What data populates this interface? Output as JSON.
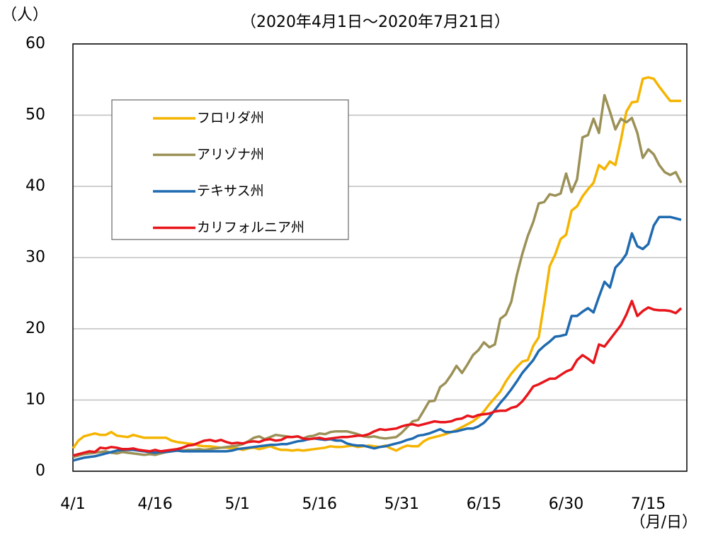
{
  "chart_data": {
    "type": "line",
    "title": "（2020年4月1日～2020年7月21日）",
    "y_axis_label": "（人）",
    "x_axis_label": "（月/日）",
    "categories": [
      "4/1",
      null,
      null,
      null,
      null,
      null,
      null,
      null,
      null,
      null,
      null,
      null,
      null,
      null,
      null,
      "4/16",
      null,
      null,
      null,
      null,
      null,
      null,
      null,
      null,
      null,
      null,
      null,
      null,
      null,
      null,
      "5/1",
      null,
      null,
      null,
      null,
      null,
      null,
      null,
      null,
      null,
      null,
      null,
      null,
      null,
      null,
      "5/16",
      null,
      null,
      null,
      null,
      null,
      null,
      null,
      null,
      null,
      null,
      null,
      null,
      null,
      null,
      "5/31",
      null,
      null,
      null,
      null,
      null,
      null,
      null,
      null,
      null,
      null,
      null,
      null,
      null,
      null,
      "6/15",
      null,
      null,
      null,
      null,
      null,
      null,
      null,
      null,
      null,
      null,
      null,
      null,
      null,
      null,
      "6/30",
      null,
      null,
      null,
      null,
      null,
      null,
      null,
      null,
      null,
      null,
      null,
      null,
      null,
      null,
      "7/15",
      null,
      null,
      null,
      null,
      null,
      null
    ],
    "series": [
      {
        "name": "フロリダ州",
        "color": "#f5b400",
        "values": [
          3.2,
          4.3,
          4.9,
          5.1,
          5.3,
          5.1,
          5.1,
          5.5,
          5.0,
          4.9,
          4.8,
          5.1,
          4.9,
          4.7,
          4.7,
          4.7,
          4.7,
          4.7,
          4.3,
          4.1,
          4.0,
          3.9,
          3.8,
          3.6,
          3.5,
          3.5,
          3.4,
          3.3,
          3.3,
          3.2,
          3.2,
          3.0,
          3.2,
          3.3,
          3.1,
          3.3,
          3.5,
          3.2,
          3.0,
          3.0,
          2.9,
          3.0,
          2.9,
          3.0,
          3.1,
          3.2,
          3.3,
          3.5,
          3.4,
          3.4,
          3.5,
          3.6,
          3.4,
          3.5,
          3.6,
          3.5,
          3.4,
          3.6,
          3.2,
          2.9,
          3.3,
          3.6,
          3.5,
          3.5,
          4.2,
          4.6,
          4.8,
          5.0,
          5.2,
          5.5,
          5.8,
          6.2,
          6.6,
          7.0,
          7.6,
          8.4,
          9.4,
          10.3,
          11.2,
          12.6,
          13.7,
          14.6,
          15.4,
          15.6,
          17.6,
          18.8,
          23.6,
          28.8,
          30.4,
          32.6,
          33.2,
          36.6,
          37.2,
          38.6,
          39.6,
          40.5,
          43.0,
          42.4,
          43.5,
          43.0,
          46.5,
          50.5,
          51.8,
          51.9,
          55.1,
          55.3,
          55.1,
          54.0,
          53.0,
          52.0,
          52.0,
          52.0
        ]
      },
      {
        "name": "アリゾナ州",
        "color": "#9b9157",
        "values": [
          2.0,
          2.2,
          2.4,
          2.5,
          2.6,
          2.7,
          2.8,
          2.6,
          2.5,
          2.7,
          2.6,
          2.5,
          2.4,
          2.3,
          2.4,
          2.3,
          2.5,
          2.7,
          2.8,
          2.9,
          2.9,
          3.0,
          3.0,
          3.1,
          3.0,
          3.1,
          3.2,
          3.3,
          3.4,
          3.5,
          3.6,
          3.8,
          4.2,
          4.7,
          4.9,
          4.5,
          4.8,
          5.1,
          5.0,
          4.9,
          4.8,
          4.9,
          4.6,
          4.9,
          5.0,
          5.3,
          5.2,
          5.5,
          5.6,
          5.6,
          5.6,
          5.4,
          5.2,
          4.9,
          4.8,
          4.9,
          4.7,
          4.6,
          4.7,
          4.8,
          5.4,
          6.2,
          7.0,
          7.2,
          8.5,
          9.8,
          9.9,
          11.8,
          12.4,
          13.5,
          14.8,
          13.8,
          15.0,
          16.3,
          17.0,
          18.1,
          17.4,
          17.8,
          21.4,
          22.0,
          23.8,
          27.5,
          30.5,
          33.0,
          35.0,
          37.6,
          37.8,
          38.9,
          38.7,
          39.0,
          41.8,
          39.2,
          41.0,
          46.9,
          47.2,
          49.5,
          47.5,
          52.8,
          50.5,
          48.0,
          49.5,
          49.0,
          49.6,
          47.5,
          44.0,
          45.2,
          44.5,
          43.0,
          42.0,
          41.6,
          42.0,
          40.5
        ]
      },
      {
        "name": "テキサス州",
        "color": "#1f6ab0",
        "values": [
          1.5,
          1.7,
          1.9,
          2.0,
          2.1,
          2.3,
          2.5,
          2.7,
          2.9,
          3.0,
          3.0,
          3.0,
          2.9,
          2.8,
          2.7,
          2.6,
          2.7,
          2.7,
          2.8,
          2.9,
          2.8,
          2.8,
          2.8,
          2.8,
          2.8,
          2.8,
          2.8,
          2.8,
          2.8,
          2.9,
          3.1,
          3.2,
          3.3,
          3.4,
          3.5,
          3.6,
          3.7,
          3.7,
          3.8,
          3.8,
          4.0,
          4.2,
          4.3,
          4.5,
          4.6,
          4.5,
          4.4,
          4.5,
          4.3,
          4.3,
          3.9,
          3.7,
          3.6,
          3.6,
          3.4,
          3.2,
          3.4,
          3.5,
          3.7,
          3.9,
          4.1,
          4.4,
          4.6,
          5.0,
          5.1,
          5.3,
          5.6,
          5.9,
          5.5,
          5.5,
          5.6,
          5.8,
          6.0,
          6.0,
          6.3,
          6.8,
          7.6,
          8.6,
          9.6,
          10.5,
          11.5,
          12.6,
          13.8,
          14.7,
          15.6,
          16.9,
          17.6,
          18.2,
          18.9,
          19.0,
          19.2,
          21.8,
          21.8,
          22.4,
          22.9,
          22.3,
          24.5,
          26.6,
          25.8,
          28.6,
          29.4,
          30.5,
          33.4,
          31.6,
          31.2,
          31.9,
          34.5,
          35.7,
          35.7,
          35.7,
          35.5,
          35.3
        ]
      },
      {
        "name": "カリフォルニア州",
        "color": "#e8151b",
        "values": [
          2.2,
          2.4,
          2.6,
          2.8,
          2.7,
          3.3,
          3.2,
          3.4,
          3.3,
          3.1,
          3.1,
          3.2,
          3.0,
          2.9,
          2.8,
          3.0,
          2.8,
          2.9,
          3.0,
          3.1,
          3.3,
          3.6,
          3.7,
          4.0,
          4.3,
          4.4,
          4.2,
          4.4,
          4.1,
          3.9,
          4.0,
          3.9,
          4.1,
          4.2,
          4.1,
          4.4,
          4.5,
          4.3,
          4.4,
          4.8,
          4.8,
          4.9,
          4.6,
          4.5,
          4.6,
          4.7,
          4.5,
          4.6,
          4.7,
          4.8,
          4.8,
          4.9,
          5.0,
          5.0,
          5.2,
          5.6,
          5.9,
          5.8,
          5.9,
          6.0,
          6.3,
          6.5,
          6.6,
          6.4,
          6.6,
          6.8,
          7.0,
          6.9,
          6.9,
          7.0,
          7.3,
          7.4,
          7.8,
          7.6,
          7.9,
          8.0,
          8.1,
          8.4,
          8.5,
          8.5,
          8.9,
          9.1,
          9.8,
          10.8,
          11.9,
          12.2,
          12.6,
          13.0,
          13.0,
          13.5,
          14.0,
          14.3,
          15.6,
          16.3,
          15.8,
          15.2,
          17.8,
          17.5,
          18.5,
          19.5,
          20.5,
          22.0,
          23.9,
          21.8,
          22.5,
          23.0,
          22.7,
          22.6,
          22.6,
          22.5,
          22.2,
          22.9
        ]
      }
    ],
    "ylim": [
      0,
      60
    ],
    "yticks": [
      0,
      10,
      20,
      30,
      40,
      50,
      60
    ],
    "grid": true,
    "legend": "upper left"
  }
}
